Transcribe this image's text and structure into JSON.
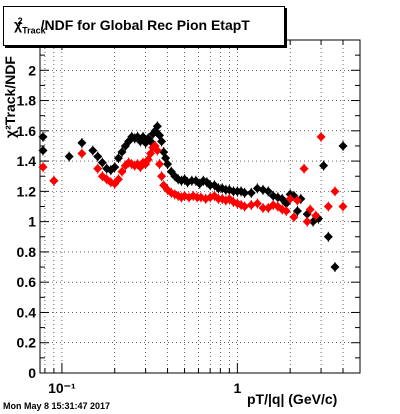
{
  "title": {
    "prefix": "χ",
    "sup": "2",
    "sub": "Track",
    "rest": "/NDF for Global Rec Pion EtapT"
  },
  "axes": {
    "x_title": "pT/|q| (GeV/c)",
    "y_title": "χ²Track/NDF"
  },
  "timestamp": "Mon May  8 15:31:47 2017",
  "chart_data": {
    "type": "scatter",
    "x_scale": "log",
    "xlim": [
      0.075,
      5.0
    ],
    "ylim": [
      0,
      2.2
    ],
    "grid": true,
    "x_tick_labels": [
      {
        "value": 0.1,
        "label": "10⁻¹"
      },
      {
        "value": 1,
        "label": "1"
      }
    ],
    "y_tick_labels": [
      0,
      0.2,
      0.4,
      0.6,
      0.8,
      1,
      1.2,
      1.4,
      1.6,
      1.8,
      2
    ],
    "series": [
      {
        "color": "#000000",
        "points": [
          [
            0.078,
            1.56
          ],
          [
            0.078,
            1.47
          ],
          [
            0.09,
            1.27
          ],
          [
            0.11,
            1.43
          ],
          [
            0.13,
            1.52
          ],
          [
            0.15,
            1.47
          ],
          [
            0.16,
            1.43
          ],
          [
            0.17,
            1.39
          ],
          [
            0.18,
            1.35
          ],
          [
            0.19,
            1.34
          ],
          [
            0.2,
            1.36
          ],
          [
            0.21,
            1.42
          ],
          [
            0.22,
            1.46
          ],
          [
            0.23,
            1.5
          ],
          [
            0.24,
            1.53
          ],
          [
            0.25,
            1.56
          ],
          [
            0.26,
            1.55
          ],
          [
            0.27,
            1.56
          ],
          [
            0.28,
            1.53
          ],
          [
            0.29,
            1.56
          ],
          [
            0.3,
            1.52
          ],
          [
            0.31,
            1.55
          ],
          [
            0.32,
            1.53
          ],
          [
            0.33,
            1.58
          ],
          [
            0.34,
            1.6
          ],
          [
            0.35,
            1.63
          ],
          [
            0.36,
            1.57
          ],
          [
            0.37,
            1.53
          ],
          [
            0.38,
            1.46
          ],
          [
            0.39,
            1.42
          ],
          [
            0.4,
            1.38
          ],
          [
            0.42,
            1.33
          ],
          [
            0.44,
            1.3
          ],
          [
            0.46,
            1.28
          ],
          [
            0.48,
            1.27
          ],
          [
            0.5,
            1.28
          ],
          [
            0.52,
            1.26
          ],
          [
            0.55,
            1.27
          ],
          [
            0.58,
            1.27
          ],
          [
            0.61,
            1.25
          ],
          [
            0.64,
            1.27
          ],
          [
            0.67,
            1.26
          ],
          [
            0.7,
            1.24
          ],
          [
            0.74,
            1.24
          ],
          [
            0.78,
            1.22
          ],
          [
            0.82,
            1.22
          ],
          [
            0.86,
            1.21
          ],
          [
            0.9,
            1.21
          ],
          [
            0.95,
            1.2
          ],
          [
            1.0,
            1.2
          ],
          [
            1.05,
            1.2
          ],
          [
            1.1,
            1.19
          ],
          [
            1.2,
            1.19
          ],
          [
            1.3,
            1.22
          ],
          [
            1.4,
            1.21
          ],
          [
            1.5,
            1.2
          ],
          [
            1.6,
            1.17
          ],
          [
            1.7,
            1.16
          ],
          [
            1.8,
            1.15
          ],
          [
            1.9,
            1.12
          ],
          [
            2.0,
            1.18
          ],
          [
            2.1,
            1.17
          ],
          [
            2.2,
            1.07
          ],
          [
            2.3,
            1.15
          ],
          [
            2.5,
            1.05
          ],
          [
            2.7,
            1.0
          ],
          [
            2.9,
            1.02
          ],
          [
            3.1,
            1.37
          ],
          [
            3.3,
            0.9
          ],
          [
            3.6,
            0.7
          ],
          [
            4.0,
            1.5
          ]
        ]
      },
      {
        "color": "#ff0000",
        "points": [
          [
            0.078,
            1.36
          ],
          [
            0.09,
            1.27
          ],
          [
            0.13,
            1.45
          ],
          [
            0.16,
            1.35
          ],
          [
            0.17,
            1.3
          ],
          [
            0.18,
            1.28
          ],
          [
            0.19,
            1.26
          ],
          [
            0.2,
            1.25
          ],
          [
            0.21,
            1.28
          ],
          [
            0.22,
            1.33
          ],
          [
            0.23,
            1.37
          ],
          [
            0.24,
            1.39
          ],
          [
            0.25,
            1.38
          ],
          [
            0.26,
            1.37
          ],
          [
            0.27,
            1.38
          ],
          [
            0.28,
            1.36
          ],
          [
            0.29,
            1.39
          ],
          [
            0.3,
            1.38
          ],
          [
            0.31,
            1.41
          ],
          [
            0.32,
            1.45
          ],
          [
            0.33,
            1.49
          ],
          [
            0.34,
            1.5
          ],
          [
            0.35,
            1.47
          ],
          [
            0.36,
            1.38
          ],
          [
            0.37,
            1.3
          ],
          [
            0.38,
            1.24
          ],
          [
            0.4,
            1.21
          ],
          [
            0.42,
            1.19
          ],
          [
            0.44,
            1.18
          ],
          [
            0.46,
            1.17
          ],
          [
            0.48,
            1.16
          ],
          [
            0.5,
            1.17
          ],
          [
            0.53,
            1.16
          ],
          [
            0.56,
            1.17
          ],
          [
            0.59,
            1.16
          ],
          [
            0.62,
            1.16
          ],
          [
            0.66,
            1.15
          ],
          [
            0.7,
            1.16
          ],
          [
            0.74,
            1.17
          ],
          [
            0.78,
            1.15
          ],
          [
            0.82,
            1.15
          ],
          [
            0.86,
            1.14
          ],
          [
            0.9,
            1.15
          ],
          [
            0.95,
            1.13
          ],
          [
            1.0,
            1.12
          ],
          [
            1.05,
            1.11
          ],
          [
            1.1,
            1.1
          ],
          [
            1.2,
            1.11
          ],
          [
            1.3,
            1.12
          ],
          [
            1.4,
            1.09
          ],
          [
            1.5,
            1.09
          ],
          [
            1.6,
            1.11
          ],
          [
            1.7,
            1.1
          ],
          [
            1.8,
            1.08
          ],
          [
            1.9,
            1.07
          ],
          [
            2.0,
            1.15
          ],
          [
            2.1,
            1.03
          ],
          [
            2.2,
            1.14
          ],
          [
            2.4,
            1.35
          ],
          [
            2.5,
            1.0
          ],
          [
            2.6,
            1.08
          ],
          [
            2.8,
            1.04
          ],
          [
            3.0,
            1.56
          ],
          [
            3.3,
            1.1
          ],
          [
            3.6,
            1.2
          ],
          [
            4.0,
            1.1
          ]
        ]
      }
    ]
  }
}
